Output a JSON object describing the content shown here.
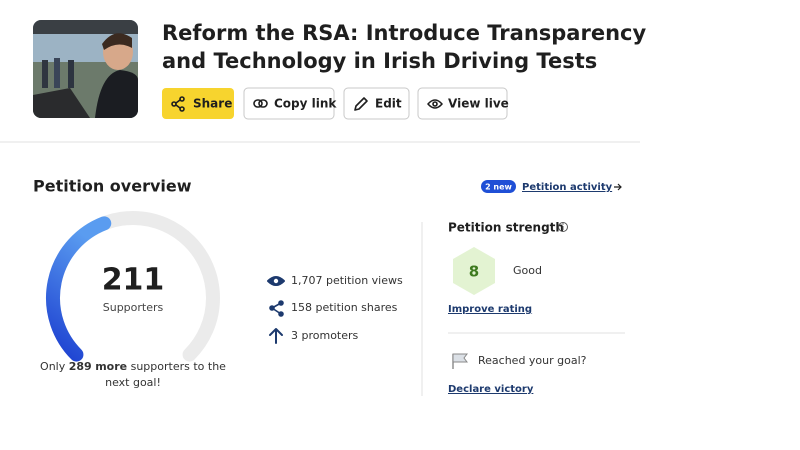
{
  "header": {
    "title_lines": [
      "Reform the RSA: Introduce Transparency",
      "and Technology in Irish Driving Tests"
    ],
    "buttons": [
      "Share",
      "Copy link",
      "Edit",
      "View live"
    ]
  },
  "overview": {
    "title": "Petition overview",
    "badge": "2 new",
    "activity_link": "Petition activity",
    "gauge": {
      "supporters": 211,
      "label": "Supporters",
      "goal": {
        "prefix": "Only",
        "remaining": 289,
        "remaining_unit": "more",
        "suffix_lines": [
          "supporters to the",
          "next goal!"
        ]
      }
    },
    "stats": [
      "1,707 petition views",
      "158 petition shares",
      "3 promoters"
    ],
    "strength": {
      "title": "Petition strength",
      "score": 8,
      "rating": "Good",
      "improve_link": "Improve rating"
    },
    "goal_box": {
      "question": "Reached your goal?",
      "link": "Declare victory"
    }
  }
}
